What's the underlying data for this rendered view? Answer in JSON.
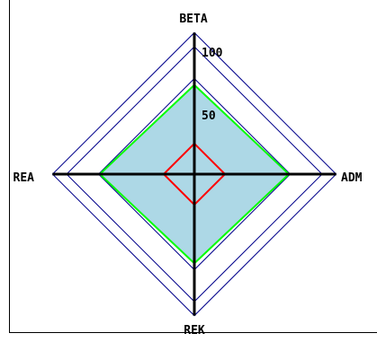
{
  "chart_data": {
    "type": "radar",
    "axes": [
      "BETA",
      "ADM",
      "REK",
      "REA"
    ],
    "rmax": 100,
    "ticks": [
      50,
      100
    ],
    "tick_labels": [
      "50",
      "100"
    ],
    "rings": [
      25,
      50,
      75,
      100,
      111
    ],
    "series": [
      {
        "values": [
          70,
          74,
          70,
          74
        ],
        "fill": "#add8e6",
        "stroke": "#0000ff"
      },
      {
        "values": [
          70,
          74,
          70,
          74
        ],
        "fill": "none",
        "stroke": "#00ff00"
      },
      {
        "values": [
          24,
          24,
          24,
          24
        ],
        "fill": "none",
        "stroke": "#ff0000"
      }
    ],
    "colors": {
      "background": "#ffffff",
      "axis": "#000000",
      "grid": "#00008b",
      "border": "#000000"
    }
  }
}
